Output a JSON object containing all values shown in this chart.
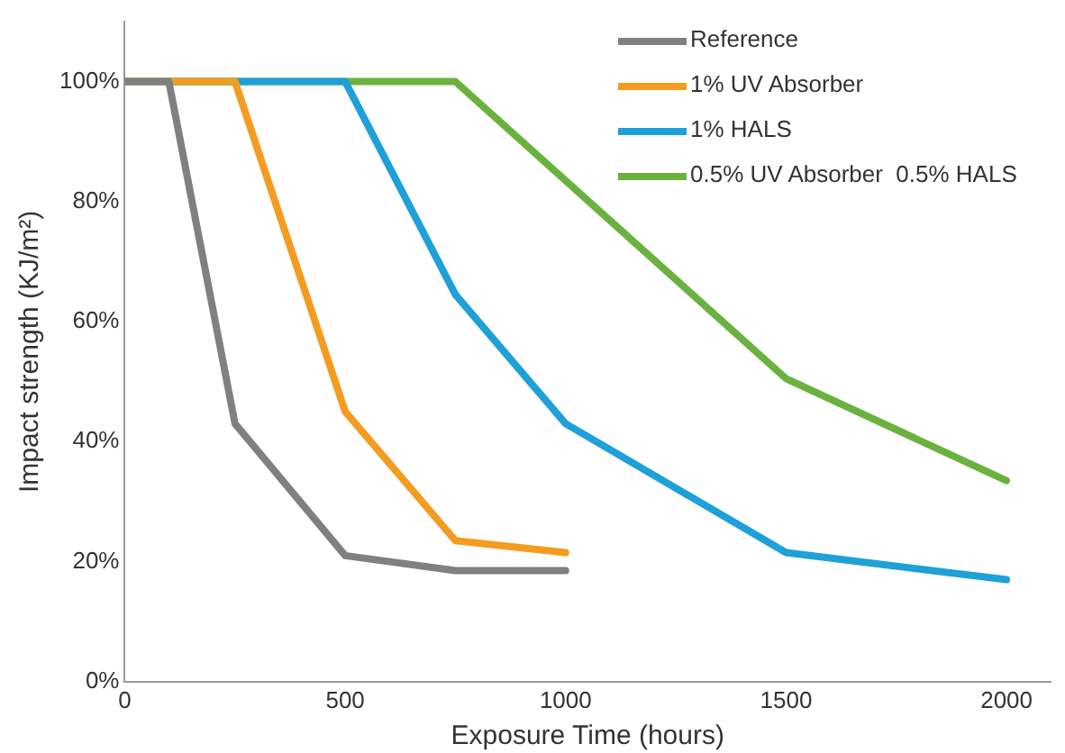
{
  "chart_data": {
    "type": "line",
    "xlabel": "Exposure Time (hours)",
    "ylabel": "Impact strength (KJ/m²)",
    "xlim": [
      0,
      2100
    ],
    "xticks": [
      0,
      500,
      1000,
      1500,
      2000
    ],
    "ylim": [
      0,
      110
    ],
    "yticks": [
      {
        "value": 0,
        "label": "0%"
      },
      {
        "value": 20,
        "label": "20%"
      },
      {
        "value": 40,
        "label": "40%"
      },
      {
        "value": 60,
        "label": "60%"
      },
      {
        "value": 80,
        "label": "80%"
      },
      {
        "value": 100,
        "label": "100%"
      }
    ],
    "grid": false,
    "legend": "top right",
    "marker": "none",
    "line_style": "solid",
    "series": [
      {
        "name": "Reference",
        "color": "#808080",
        "x": [
          0,
          100,
          250,
          500,
          750,
          1000
        ],
        "values": [
          100,
          100,
          43,
          21,
          18.5,
          18.5
        ]
      },
      {
        "name": "1% UV Absorber",
        "color": "#f39c1f",
        "x": [
          0,
          250,
          500,
          750,
          1000
        ],
        "values": [
          100,
          100,
          45,
          23.5,
          21.5
        ]
      },
      {
        "name": "1% HALS",
        "color": "#1ea0d8",
        "x": [
          0,
          500,
          750,
          1000,
          1500,
          2000
        ],
        "values": [
          100,
          100,
          64.5,
          43,
          21.5,
          17
        ]
      },
      {
        "name": "0.5% UV Absorber  0.5% HALS",
        "color": "#6ab23e",
        "x": [
          0,
          750,
          1500,
          2000
        ],
        "values": [
          100,
          100,
          50.5,
          33.5
        ]
      }
    ]
  }
}
